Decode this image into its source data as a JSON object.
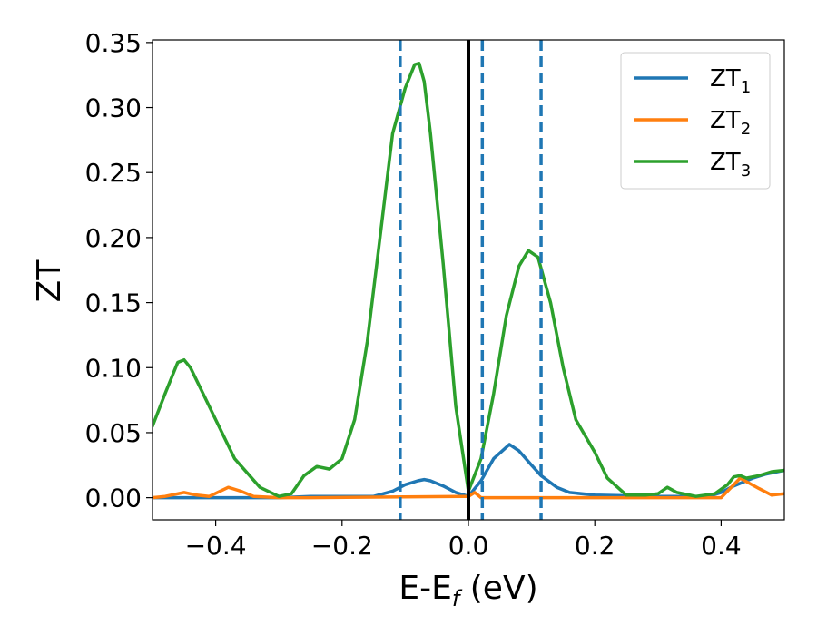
{
  "chart_data": {
    "type": "line",
    "xlabel": "E-E",
    "xlabel_sub": "f",
    "xlabel_unit": " (eV)",
    "ylabel": "ZT",
    "xlim": [
      -0.5,
      0.5
    ],
    "ylim": [
      -0.017,
      0.352
    ],
    "xticks": [
      -0.4,
      -0.2,
      0.0,
      0.2,
      0.4
    ],
    "xtick_labels": [
      "−0.4",
      "−0.2",
      "0.0",
      "0.2",
      "0.4"
    ],
    "yticks": [
      0.0,
      0.05,
      0.1,
      0.15,
      0.2,
      0.25,
      0.3,
      0.35
    ],
    "ytick_labels": [
      "0.00",
      "0.05",
      "0.10",
      "0.15",
      "0.20",
      "0.25",
      "0.30",
      "0.35"
    ],
    "legend_position": "top-right",
    "series": [
      {
        "name": "ZT",
        "name_sub": "1",
        "color": "#1f77b4",
        "points": [
          [
            -0.5,
            0.0
          ],
          [
            -0.3,
            0.0
          ],
          [
            -0.25,
            0.001
          ],
          [
            -0.2,
            0.001
          ],
          [
            -0.15,
            0.001
          ],
          [
            -0.12,
            0.005
          ],
          [
            -0.1,
            0.01
          ],
          [
            -0.08,
            0.013
          ],
          [
            -0.07,
            0.014
          ],
          [
            -0.06,
            0.013
          ],
          [
            -0.04,
            0.009
          ],
          [
            -0.02,
            0.004
          ],
          [
            0.0,
            0.001
          ],
          [
            0.02,
            0.013
          ],
          [
            0.04,
            0.03
          ],
          [
            0.065,
            0.041
          ],
          [
            0.08,
            0.036
          ],
          [
            0.1,
            0.025
          ],
          [
            0.115,
            0.017
          ],
          [
            0.14,
            0.008
          ],
          [
            0.16,
            0.004
          ],
          [
            0.2,
            0.002
          ],
          [
            0.3,
            0.001
          ],
          [
            0.38,
            0.001
          ],
          [
            0.4,
            0.004
          ],
          [
            0.42,
            0.009
          ],
          [
            0.45,
            0.015
          ],
          [
            0.47,
            0.018
          ],
          [
            0.5,
            0.021
          ]
        ]
      },
      {
        "name": "ZT",
        "name_sub": "2",
        "color": "#ff7f0e",
        "points": [
          [
            -0.5,
            0.0
          ],
          [
            -0.48,
            0.001
          ],
          [
            -0.45,
            0.004
          ],
          [
            -0.43,
            0.002
          ],
          [
            -0.41,
            0.001
          ],
          [
            -0.38,
            0.008
          ],
          [
            -0.36,
            0.005
          ],
          [
            -0.34,
            0.001
          ],
          [
            -0.3,
            0.0
          ],
          [
            -0.25,
            0.0
          ],
          [
            0.0,
            0.001
          ],
          [
            0.01,
            0.004
          ],
          [
            0.02,
            0.0
          ],
          [
            0.4,
            0.0
          ],
          [
            0.43,
            0.015
          ],
          [
            0.46,
            0.007
          ],
          [
            0.48,
            0.002
          ],
          [
            0.5,
            0.003
          ]
        ]
      },
      {
        "name": "ZT",
        "name_sub": "3",
        "color": "#2ca02c",
        "points": [
          [
            -0.5,
            0.055
          ],
          [
            -0.48,
            0.08
          ],
          [
            -0.46,
            0.104
          ],
          [
            -0.45,
            0.106
          ],
          [
            -0.44,
            0.1
          ],
          [
            -0.42,
            0.08
          ],
          [
            -0.4,
            0.06
          ],
          [
            -0.37,
            0.03
          ],
          [
            -0.33,
            0.008
          ],
          [
            -0.3,
            0.001
          ],
          [
            -0.28,
            0.003
          ],
          [
            -0.26,
            0.017
          ],
          [
            -0.24,
            0.024
          ],
          [
            -0.22,
            0.022
          ],
          [
            -0.2,
            0.03
          ],
          [
            -0.18,
            0.06
          ],
          [
            -0.16,
            0.12
          ],
          [
            -0.14,
            0.2
          ],
          [
            -0.12,
            0.28
          ],
          [
            -0.1,
            0.315
          ],
          [
            -0.085,
            0.333
          ],
          [
            -0.078,
            0.334
          ],
          [
            -0.07,
            0.32
          ],
          [
            -0.06,
            0.28
          ],
          [
            -0.04,
            0.18
          ],
          [
            -0.02,
            0.07
          ],
          [
            0.0,
            0.005
          ],
          [
            0.02,
            0.03
          ],
          [
            0.04,
            0.08
          ],
          [
            0.06,
            0.14
          ],
          [
            0.08,
            0.178
          ],
          [
            0.095,
            0.19
          ],
          [
            0.11,
            0.185
          ],
          [
            0.13,
            0.15
          ],
          [
            0.15,
            0.1
          ],
          [
            0.17,
            0.06
          ],
          [
            0.2,
            0.035
          ],
          [
            0.22,
            0.015
          ],
          [
            0.25,
            0.002
          ],
          [
            0.28,
            0.002
          ],
          [
            0.3,
            0.003
          ],
          [
            0.315,
            0.008
          ],
          [
            0.33,
            0.004
          ],
          [
            0.36,
            0.001
          ],
          [
            0.39,
            0.003
          ],
          [
            0.41,
            0.01
          ],
          [
            0.42,
            0.016
          ],
          [
            0.43,
            0.017
          ],
          [
            0.44,
            0.015
          ],
          [
            0.46,
            0.017
          ],
          [
            0.48,
            0.02
          ],
          [
            0.5,
            0.021
          ]
        ]
      }
    ],
    "vlines": [
      {
        "x": 0.0,
        "style": "solid",
        "color": "#000000"
      },
      {
        "x": -0.108,
        "style": "dashed",
        "color": "#1f77b4"
      },
      {
        "x": 0.022,
        "style": "dashed",
        "color": "#1f77b4"
      },
      {
        "x": 0.115,
        "style": "dashed",
        "color": "#1f77b4"
      }
    ]
  }
}
